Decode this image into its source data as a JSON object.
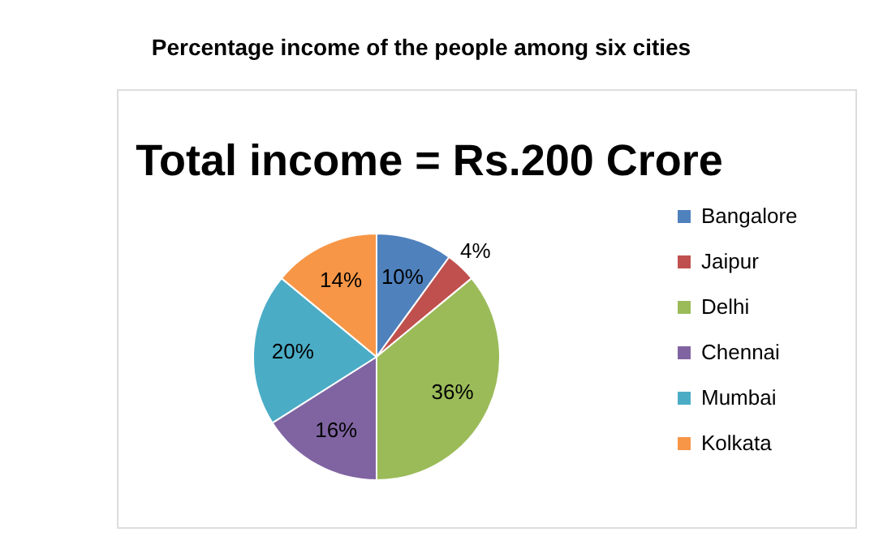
{
  "chart_data": {
    "type": "pie",
    "title": "Percentage income of the people among six cities",
    "subtitle": "Total income = Rs.200 Crore",
    "categories": [
      "Bangalore",
      "Jaipur",
      "Delhi",
      "Chennai",
      "Mumbai",
      "Kolkata"
    ],
    "values": [
      10,
      4,
      36,
      16,
      20,
      14
    ],
    "colors": [
      "#4f81bd",
      "#c0504d",
      "#9bbb59",
      "#8064a2",
      "#4bacc6",
      "#f79646"
    ],
    "value_labels": [
      "10%",
      "4%",
      "36%",
      "16%",
      "20%",
      "14%"
    ],
    "legend": "right"
  }
}
